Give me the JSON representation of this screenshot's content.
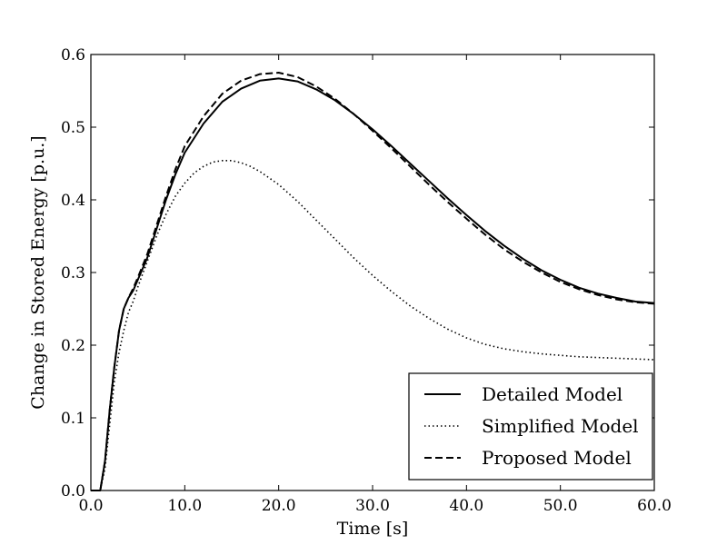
{
  "chart_data": {
    "type": "line",
    "title": "",
    "xlabel": "Time [s]",
    "ylabel": "Change in Stored Energy [p.u.]",
    "xlim": [
      0,
      60
    ],
    "ylim": [
      0,
      0.6
    ],
    "x_ticks": [
      0,
      10,
      20,
      30,
      40,
      50,
      60
    ],
    "x_tick_labels": [
      "0.0",
      "10.0",
      "20.0",
      "30.0",
      "40.0",
      "50.0",
      "60.0"
    ],
    "y_ticks": [
      0,
      0.1,
      0.2,
      0.3,
      0.4,
      0.5,
      0.6
    ],
    "y_tick_labels": [
      "0.0",
      "0.1",
      "0.2",
      "0.3",
      "0.4",
      "0.5",
      "0.6"
    ],
    "grid": false,
    "legend_position": "lower-right",
    "series": [
      {
        "name": "Detailed Model",
        "style": "solid",
        "color": "#000000",
        "x": [
          0,
          1,
          1.5,
          2,
          2.5,
          3,
          3.5,
          4,
          4.5,
          5,
          6,
          7,
          8,
          9,
          10,
          12,
          14,
          16,
          18,
          20,
          22,
          24,
          26,
          28,
          30,
          32,
          34,
          36,
          38,
          40,
          42,
          44,
          46,
          48,
          50,
          52,
          54,
          56,
          58,
          60
        ],
        "y": [
          0,
          0,
          0.04,
          0.11,
          0.17,
          0.22,
          0.25,
          0.265,
          0.275,
          0.29,
          0.32,
          0.36,
          0.4,
          0.435,
          0.465,
          0.505,
          0.535,
          0.553,
          0.564,
          0.567,
          0.563,
          0.552,
          0.537,
          0.518,
          0.497,
          0.474,
          0.45,
          0.426,
          0.402,
          0.379,
          0.357,
          0.337,
          0.319,
          0.303,
          0.29,
          0.279,
          0.271,
          0.265,
          0.26,
          0.258
        ]
      },
      {
        "name": "Simplified Model",
        "style": "dotted",
        "color": "#000000",
        "x": [
          0,
          1,
          1.5,
          2,
          2.5,
          3,
          3.5,
          4,
          4.5,
          5,
          6,
          7,
          8,
          9,
          10,
          11,
          12,
          13,
          14,
          15,
          16,
          17,
          18,
          20,
          22,
          24,
          26,
          28,
          30,
          32,
          34,
          36,
          38,
          40,
          42,
          44,
          46,
          48,
          50,
          52,
          54,
          56,
          58,
          60
        ],
        "y": [
          0,
          0,
          0.03,
          0.09,
          0.15,
          0.19,
          0.22,
          0.245,
          0.26,
          0.28,
          0.315,
          0.35,
          0.38,
          0.405,
          0.423,
          0.437,
          0.446,
          0.452,
          0.454,
          0.454,
          0.451,
          0.446,
          0.439,
          0.421,
          0.398,
          0.372,
          0.346,
          0.32,
          0.296,
          0.274,
          0.254,
          0.237,
          0.222,
          0.21,
          0.201,
          0.195,
          0.191,
          0.188,
          0.186,
          0.184,
          0.183,
          0.182,
          0.181,
          0.18
        ]
      },
      {
        "name": "Proposed Model",
        "style": "dashed",
        "color": "#000000",
        "x": [
          0,
          1,
          1.5,
          2,
          2.5,
          3,
          3.5,
          4,
          4.5,
          5,
          6,
          7,
          8,
          9,
          10,
          12,
          14,
          16,
          18,
          20,
          22,
          24,
          26,
          28,
          30,
          32,
          34,
          36,
          38,
          40,
          42,
          44,
          46,
          48,
          50,
          52,
          54,
          56,
          58,
          60
        ],
        "y": [
          0,
          0,
          0.04,
          0.11,
          0.17,
          0.22,
          0.25,
          0.265,
          0.278,
          0.293,
          0.325,
          0.365,
          0.405,
          0.442,
          0.474,
          0.515,
          0.546,
          0.564,
          0.573,
          0.575,
          0.569,
          0.556,
          0.539,
          0.518,
          0.495,
          0.471,
          0.446,
          0.421,
          0.397,
          0.374,
          0.352,
          0.332,
          0.315,
          0.3,
          0.287,
          0.277,
          0.269,
          0.263,
          0.259,
          0.257
        ]
      }
    ]
  }
}
